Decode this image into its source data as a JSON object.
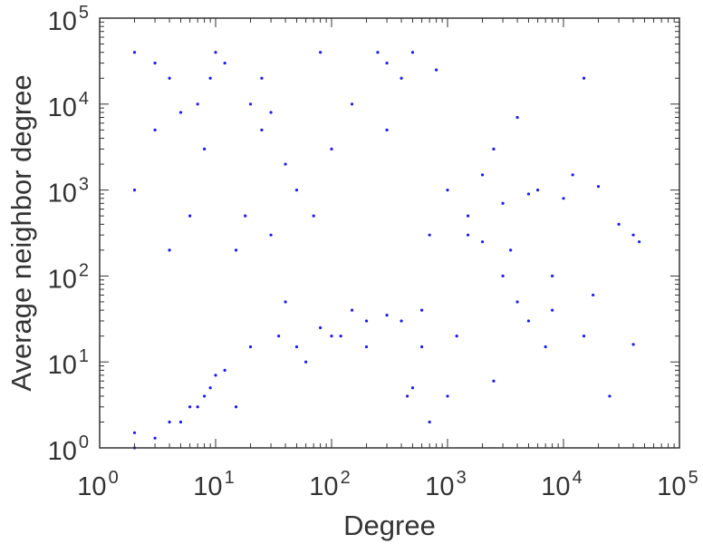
{
  "chart_data": {
    "type": "scatter",
    "title": "",
    "xlabel": "Degree",
    "ylabel": "Average neighbor degree",
    "xscale": "log",
    "yscale": "log",
    "xlim": [
      1,
      100000
    ],
    "ylim": [
      1,
      100000
    ],
    "x_ticks": [
      {
        "base": "10",
        "exp": "0"
      },
      {
        "base": "10",
        "exp": "1"
      },
      {
        "base": "10",
        "exp": "2"
      },
      {
        "base": "10",
        "exp": "3"
      },
      {
        "base": "10",
        "exp": "4"
      },
      {
        "base": "10",
        "exp": "5"
      }
    ],
    "y_ticks": [
      {
        "base": "10",
        "exp": "0"
      },
      {
        "base": "10",
        "exp": "1"
      },
      {
        "base": "10",
        "exp": "2"
      },
      {
        "base": "10",
        "exp": "3"
      },
      {
        "base": "10",
        "exp": "4"
      },
      {
        "base": "10",
        "exp": "5"
      }
    ],
    "grid": false,
    "legend": "none",
    "marker_color": "#1a1aff",
    "series": [
      {
        "x": [
          2,
          2,
          2,
          2,
          3,
          3,
          3,
          4,
          4,
          4,
          5,
          5,
          6,
          6,
          7,
          7,
          8,
          8,
          9,
          9,
          10,
          10,
          12,
          12,
          15,
          15,
          18,
          20,
          20,
          25,
          25,
          30,
          30,
          35,
          40,
          40,
          50,
          50,
          60,
          70,
          80,
          80,
          100,
          100,
          120,
          150,
          150,
          200,
          200,
          250,
          300,
          300,
          400,
          400,
          500,
          500,
          600,
          700,
          800,
          1000,
          1000,
          1200,
          1500,
          2000,
          2500,
          3000,
          3500,
          4000,
          4000,
          5000,
          6000,
          7000,
          8000,
          10000,
          12000,
          15000,
          18000,
          20000,
          25000,
          30000,
          40000,
          45000,
          5000,
          3000,
          2000,
          8000,
          15000,
          40000,
          1500,
          600,
          300,
          450,
          2500,
          700
        ],
        "y": [
          1,
          1000,
          40000,
          1.5,
          1.3,
          5000,
          30000,
          2,
          200,
          20000,
          2,
          8000,
          3,
          500,
          3,
          10000,
          4,
          3000,
          5,
          20000,
          7,
          40000,
          8,
          30000,
          3,
          200,
          500,
          10000,
          15,
          20000,
          5000,
          300,
          8000,
          20,
          2000,
          50,
          15,
          1000,
          10,
          500,
          25,
          40000,
          20,
          3000,
          20,
          40,
          10000,
          15,
          30,
          40000,
          35,
          5000,
          30,
          20000,
          5,
          40000,
          40,
          300,
          25000,
          1000,
          4,
          20,
          500,
          1500,
          6,
          100,
          200,
          50,
          7000,
          30,
          1000,
          15,
          100,
          800,
          1500,
          20000,
          60,
          1100,
          4,
          400,
          300,
          250,
          900,
          700,
          250,
          40,
          20,
          16,
          300,
          15,
          30000,
          4,
          3000,
          2
        ]
      }
    ]
  }
}
